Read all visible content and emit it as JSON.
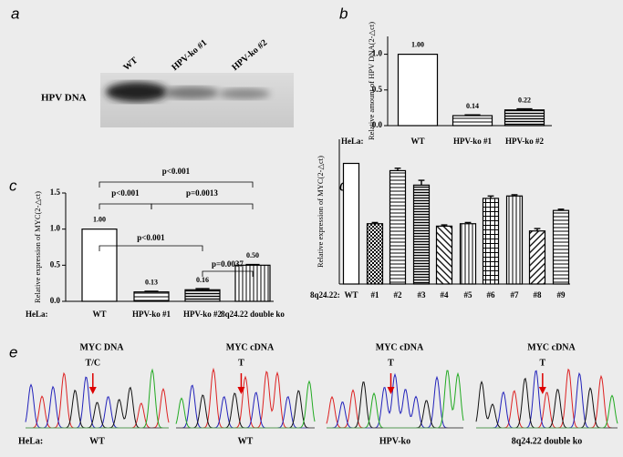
{
  "panel_labels": [
    "a",
    "b",
    "c",
    "d",
    "e"
  ],
  "blot": {
    "lanes": [
      "WT",
      "HPV-ko #1",
      "HPV-ko #2"
    ],
    "label": "HPV DNA"
  },
  "chart_data": [
    {
      "type": "bar",
      "ylabel": "Relative amount of  HPV DNA(2-△ct)",
      "group_label": "HeLa:",
      "categories": [
        "WT",
        "HPV-ko #1",
        "HPV-ko #2"
      ],
      "values": [
        1.0,
        0.14,
        0.22
      ],
      "value_labels": [
        "1.00",
        "0.14",
        "0.22"
      ],
      "errors": [
        0,
        0.01,
        0.015
      ],
      "color": "#000000",
      "ylim": [
        0,
        1.25
      ],
      "yticks": [
        {
          "value": 0,
          "label": "0.0"
        },
        0.5,
        {
          "value": 1,
          "label": "1.0"
        }
      ]
    },
    {
      "type": "bar",
      "ylabel": "Relative expression of  MYC(2-△ct)",
      "group_label": "HeLa:",
      "categories": [
        "WT",
        "HPV-ko #1",
        "HPV-ko #2",
        "8q24.22 double ko"
      ],
      "values": [
        1.0,
        0.13,
        0.16,
        0.5
      ],
      "value_labels": [
        "1.00",
        "0.13",
        "0.16",
        "0.50"
      ],
      "errors": [
        0,
        0.01,
        0.015,
        0.01
      ],
      "color": "#000000",
      "ylim": [
        0,
        1.5
      ],
      "yticks": [
        {
          "value": 0,
          "label": "0.0"
        },
        0.5,
        {
          "value": 1,
          "label": "1.0"
        },
        1.5
      ],
      "annotations": [
        "p<0.001",
        "p<0.001",
        "p=0.0013",
        "p<0.001",
        "p=0.0037"
      ]
    },
    {
      "type": "bar",
      "ylabel": "Relative expression of  MYC(2-△ct)",
      "group_label": "8q24.22:",
      "categories": [
        "WT",
        "#1",
        "#2",
        "#3",
        "#4",
        "#5",
        "#6",
        "#7",
        "#8",
        "#9"
      ],
      "values": [
        1.0,
        0.5,
        0.94,
        0.82,
        0.48,
        0.5,
        0.71,
        0.73,
        0.44,
        0.61
      ],
      "errors": [
        0,
        0.01,
        0.02,
        0.04,
        0.01,
        0.01,
        0.02,
        0.01,
        0.02,
        0.01
      ],
      "color": "#000000",
      "ylim": [
        0,
        1.2
      ]
    }
  ],
  "sequencing": {
    "group_label": "HeLa:",
    "traces": [
      {
        "title": "MYC DNA",
        "base": "T/C",
        "sample": "WT"
      },
      {
        "title": "MYC cDNA",
        "base": "T",
        "sample": "WT"
      },
      {
        "title": "MYC cDNA",
        "base": "T",
        "sample": "HPV-ko"
      },
      {
        "title": "MYC cDNA",
        "base": "T",
        "sample": "8q24.22 double ko"
      }
    ]
  }
}
